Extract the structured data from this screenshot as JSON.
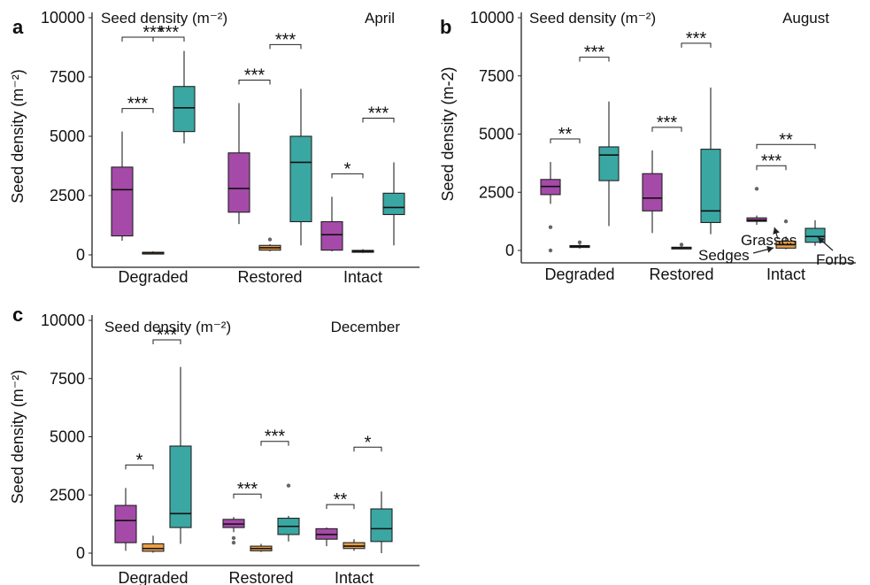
{
  "colors": {
    "Grasses": "#a54aa8",
    "Sedges": "#e8a04a",
    "Forbs": "#3aa7a3",
    "outlier": "#666666"
  },
  "chart_data": [
    {
      "type": "box",
      "panel": "a",
      "title": "Seed density (m⁻²)",
      "month": "April",
      "ylabel": "Seed density (m⁻²)",
      "ylim": [
        0,
        10000
      ],
      "yticks": [
        "0",
        "2500",
        "5000",
        "7500",
        "10000"
      ],
      "categories": [
        "Degraded",
        "Restored",
        "Intact"
      ],
      "series": [
        {
          "name": "Grasses",
          "boxes": [
            {
              "min": 600,
              "q1": 800,
              "median": 2750,
              "q3": 3700,
              "max": 5200,
              "outliers": []
            },
            {
              "min": 1300,
              "q1": 1800,
              "median": 2800,
              "q3": 4300,
              "max": 6400,
              "outliers": []
            },
            {
              "min": 150,
              "q1": 200,
              "median": 850,
              "q3": 1400,
              "max": 2450,
              "outliers": []
            }
          ]
        },
        {
          "name": "Sedges",
          "boxes": [
            {
              "min": 40,
              "q1": 70,
              "median": 90,
              "q3": 110,
              "max": 150,
              "outliers": []
            },
            {
              "min": 150,
              "q1": 200,
              "median": 300,
              "q3": 400,
              "max": 450,
              "outliers": [
                650
              ]
            },
            {
              "min": 80,
              "q1": 110,
              "median": 160,
              "q3": 190,
              "max": 240,
              "outliers": []
            }
          ]
        },
        {
          "name": "Forbs",
          "boxes": [
            {
              "min": 4700,
              "q1": 5200,
              "median": 6200,
              "q3": 7100,
              "max": 8600,
              "outliers": []
            },
            {
              "min": 400,
              "q1": 1400,
              "median": 3900,
              "q3": 5000,
              "max": 7000,
              "outliers": []
            },
            {
              "min": 400,
              "q1": 1700,
              "median": 2000,
              "q3": 2600,
              "max": 3900,
              "outliers": []
            }
          ]
        }
      ],
      "significance": [
        {
          "cat": 0,
          "from": 0,
          "to": 1,
          "label": "***",
          "level": 0
        },
        {
          "cat": 0,
          "from": 1,
          "to": 2,
          "label": "***",
          "level": 1
        },
        {
          "cat": 0,
          "from": 0,
          "to": 2,
          "label": "***",
          "level": 2
        },
        {
          "cat": 1,
          "from": 0,
          "to": 1,
          "label": "***",
          "level": 0
        },
        {
          "cat": 1,
          "from": 1,
          "to": 2,
          "label": "***",
          "level": 1
        },
        {
          "cat": 2,
          "from": 0,
          "to": 1,
          "label": "*",
          "level": 0
        },
        {
          "cat": 2,
          "from": 1,
          "to": 2,
          "label": "***",
          "level": 1
        }
      ]
    },
    {
      "type": "box",
      "panel": "b",
      "title": "Seed density (m⁻²)",
      "month": "August",
      "ylabel": "Seed density (m-2)",
      "ylim": [
        0,
        10000
      ],
      "yticks": [
        "0",
        "2500",
        "5000",
        "7500",
        "10000"
      ],
      "categories": [
        "Degraded",
        "Restored",
        "Intact"
      ],
      "series": [
        {
          "name": "Grasses",
          "boxes": [
            {
              "min": 2000,
              "q1": 2400,
              "median": 2750,
              "q3": 3050,
              "max": 3800,
              "outliers": [
                1000,
                0
              ]
            },
            {
              "min": 750,
              "q1": 1700,
              "median": 2250,
              "q3": 3300,
              "max": 4300,
              "outliers": []
            },
            {
              "min": 1100,
              "q1": 1250,
              "median": 1300,
              "q3": 1400,
              "max": 1500,
              "outliers": [
                2650
              ]
            }
          ]
        },
        {
          "name": "Sedges",
          "boxes": [
            {
              "min": 80,
              "q1": 130,
              "median": 180,
              "q3": 210,
              "max": 260,
              "outliers": [
                350
              ]
            },
            {
              "min": 50,
              "q1": 80,
              "median": 110,
              "q3": 140,
              "max": 170,
              "outliers": [
                250
              ]
            },
            {
              "min": 50,
              "q1": 100,
              "median": 250,
              "q3": 400,
              "max": 600,
              "outliers": [
                1250
              ]
            }
          ]
        },
        {
          "name": "Forbs",
          "boxes": [
            {
              "min": 1050,
              "q1": 3000,
              "median": 4100,
              "q3": 4450,
              "max": 6400,
              "outliers": []
            },
            {
              "min": 700,
              "q1": 1200,
              "median": 1700,
              "q3": 4350,
              "max": 7000,
              "outliers": []
            },
            {
              "min": 200,
              "q1": 350,
              "median": 600,
              "q3": 950,
              "max": 1300,
              "outliers": []
            }
          ]
        }
      ],
      "significance": [
        {
          "cat": 0,
          "from": 0,
          "to": 1,
          "label": "**",
          "level": 0
        },
        {
          "cat": 0,
          "from": 1,
          "to": 2,
          "label": "***",
          "level": 1
        },
        {
          "cat": 1,
          "from": 0,
          "to": 1,
          "label": "***",
          "level": 0
        },
        {
          "cat": 1,
          "from": 1,
          "to": 2,
          "label": "***",
          "level": 1
        },
        {
          "cat": 2,
          "from": 0,
          "to": 1,
          "label": "***",
          "level": 0
        },
        {
          "cat": 2,
          "from": 0,
          "to": 2,
          "label": "**",
          "level": 1
        }
      ],
      "annotations": [
        {
          "text": "Grasses",
          "series": 0
        },
        {
          "text": "Sedges",
          "series": 1
        },
        {
          "text": "Forbs",
          "series": 2
        }
      ]
    },
    {
      "type": "box",
      "panel": "c",
      "title": "Seed density (m⁻²)",
      "month": "December",
      "ylabel": "Seed density (m⁻²)",
      "ylim": [
        0,
        10000
      ],
      "yticks": [
        "0",
        "2500",
        "5000",
        "7500",
        "10000"
      ],
      "categories": [
        "Degraded",
        "Restored",
        "Intact"
      ],
      "series": [
        {
          "name": "Grasses",
          "boxes": [
            {
              "min": 100,
              "q1": 450,
              "median": 1400,
              "q3": 2050,
              "max": 2800,
              "outliers": []
            },
            {
              "min": 900,
              "q1": 1100,
              "median": 1250,
              "q3": 1450,
              "max": 1550,
              "outliers": [
                650,
                450
              ]
            },
            {
              "min": 300,
              "q1": 600,
              "median": 800,
              "q3": 1050,
              "max": 1100,
              "outliers": []
            }
          ]
        },
        {
          "name": "Sedges",
          "boxes": [
            {
              "min": 20,
              "q1": 80,
              "median": 200,
              "q3": 400,
              "max": 750,
              "outliers": []
            },
            {
              "min": 50,
              "q1": 100,
              "median": 200,
              "q3": 300,
              "max": 400,
              "outliers": []
            },
            {
              "min": 100,
              "q1": 200,
              "median": 300,
              "q3": 450,
              "max": 600,
              "outliers": []
            }
          ]
        },
        {
          "name": "Forbs",
          "boxes": [
            {
              "min": 400,
              "q1": 1100,
              "median": 1700,
              "q3": 4600,
              "max": 8000,
              "outliers": []
            },
            {
              "min": 500,
              "q1": 800,
              "median": 1150,
              "q3": 1500,
              "max": 1600,
              "outliers": [
                2900
              ]
            },
            {
              "min": 0,
              "q1": 500,
              "median": 1050,
              "q3": 1900,
              "max": 2650,
              "outliers": []
            }
          ]
        }
      ],
      "significance": [
        {
          "cat": 0,
          "from": 0,
          "to": 1,
          "label": "*",
          "level": 0
        },
        {
          "cat": 0,
          "from": 1,
          "to": 2,
          "label": "***",
          "level": 1
        },
        {
          "cat": 1,
          "from": 0,
          "to": 1,
          "label": "***",
          "level": 0
        },
        {
          "cat": 1,
          "from": 1,
          "to": 2,
          "label": "***",
          "level": 1
        },
        {
          "cat": 2,
          "from": 0,
          "to": 1,
          "label": "**",
          "level": 0
        },
        {
          "cat": 2,
          "from": 1,
          "to": 2,
          "label": "*",
          "level": 1
        }
      ]
    }
  ]
}
